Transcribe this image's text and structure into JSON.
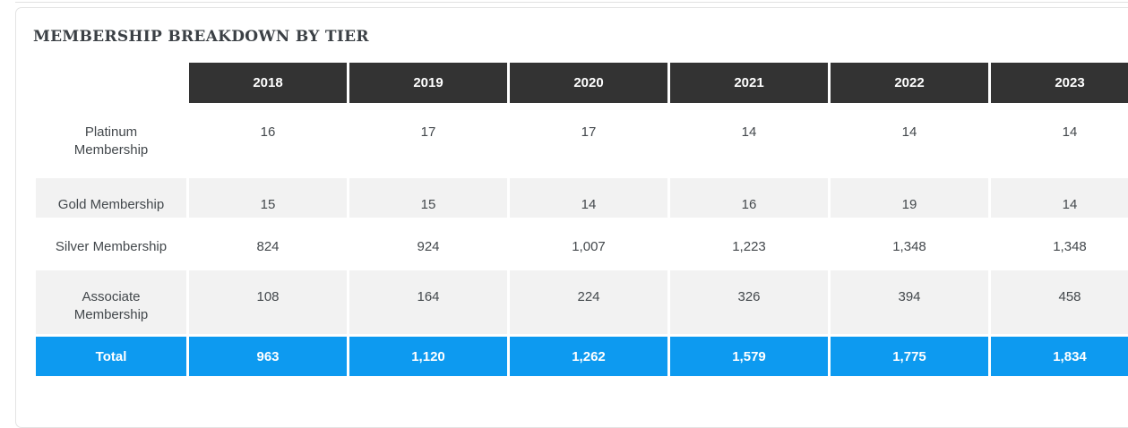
{
  "card": {
    "title": "MEMBERSHIP BREAKDOWN BY TIER"
  },
  "colors": {
    "header_bg": "#333333",
    "header_text": "#ffffff",
    "total_bg": "#0d9af0",
    "shaded_row_bg": "#f2f2f2",
    "body_text": "#43484c",
    "title_text": "#3b4045",
    "card_border": "#e3e3e3",
    "divider": "#e2e2e2"
  },
  "table": {
    "columns": [
      "2018",
      "2019",
      "2020",
      "2021",
      "2022",
      "2023"
    ],
    "rows": [
      {
        "label": "Platinum Membership",
        "values": [
          "16",
          "17",
          "17",
          "14",
          "14",
          "14"
        ]
      },
      {
        "label": "Gold Membership",
        "values": [
          "15",
          "15",
          "14",
          "16",
          "19",
          "14"
        ]
      },
      {
        "label": "Silver Membership",
        "values": [
          "824",
          "924",
          "1,007",
          "1,223",
          "1,348",
          "1,348"
        ]
      },
      {
        "label": "Associate Membership",
        "values": [
          "108",
          "164",
          "224",
          "326",
          "394",
          "458"
        ]
      }
    ],
    "total": {
      "label": "Total",
      "values": [
        "963",
        "1,120",
        "1,262",
        "1,579",
        "1,775",
        "1,834"
      ]
    }
  },
  "chart_data": {
    "type": "table",
    "title": "MEMBERSHIP BREAKDOWN BY TIER",
    "categories": [
      "2018",
      "2019",
      "2020",
      "2021",
      "2022",
      "2023"
    ],
    "series": [
      {
        "name": "Platinum Membership",
        "values": [
          16,
          17,
          17,
          14,
          14,
          14
        ]
      },
      {
        "name": "Gold Membership",
        "values": [
          15,
          15,
          14,
          16,
          19,
          14
        ]
      },
      {
        "name": "Silver Membership",
        "values": [
          824,
          924,
          1007,
          1223,
          1348,
          1348
        ]
      },
      {
        "name": "Associate Membership",
        "values": [
          108,
          164,
          224,
          326,
          394,
          458
        ]
      },
      {
        "name": "Total",
        "values": [
          963,
          1120,
          1262,
          1579,
          1775,
          1834
        ]
      }
    ]
  }
}
